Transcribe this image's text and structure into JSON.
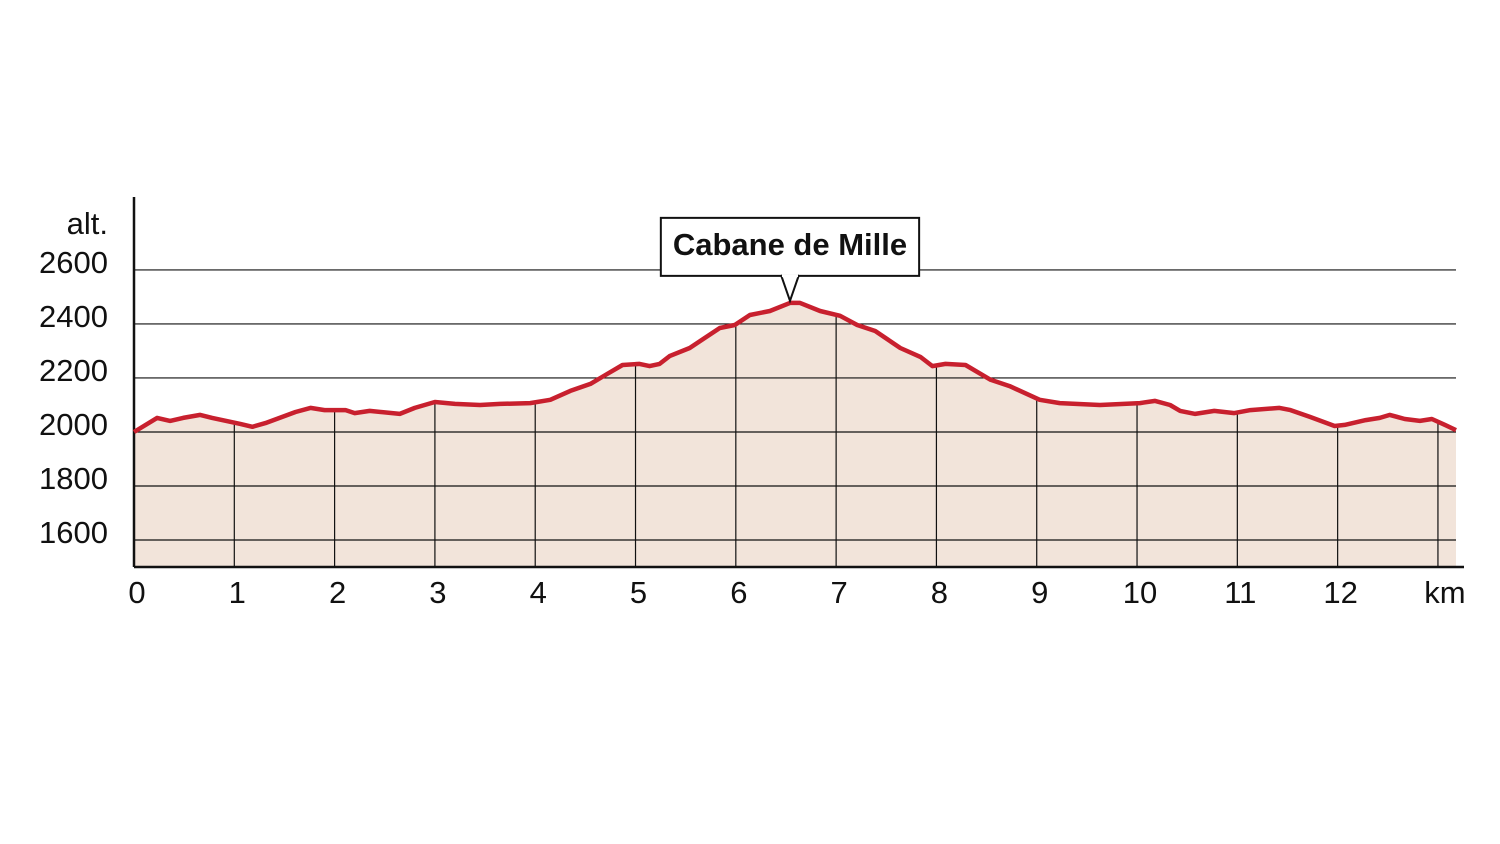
{
  "chart_data": {
    "type": "area",
    "y_label": "alt.",
    "annotation": "Cabane de Mille",
    "color": "#c8202e",
    "fill": "#f2e4da",
    "xlim": [
      0,
      13.18
    ],
    "ylim": [
      1500,
      2870
    ],
    "xticks": [
      0,
      1,
      2,
      3,
      4,
      5,
      6,
      7,
      8,
      9,
      10,
      11,
      12,
      {
        "value": 13,
        "label": "km"
      }
    ],
    "yticks": [
      1600,
      1800,
      2000,
      2200,
      2400,
      2600
    ],
    "grid": true,
    "x": [
      0,
      0.23,
      0.36,
      0.49,
      0.66,
      0.78,
      1.06,
      1.18,
      1.31,
      1.61,
      1.76,
      1.9,
      2.11,
      2.2,
      2.35,
      2.65,
      2.8,
      3.0,
      3.2,
      3.45,
      3.65,
      3.95,
      4.15,
      4.35,
      4.55,
      4.7,
      4.87,
      5.04,
      5.14,
      5.24,
      5.34,
      5.54,
      5.69,
      5.84,
      5.99,
      6.14,
      6.34,
      6.54,
      6.64,
      6.84,
      7.04,
      7.21,
      7.39,
      7.64,
      7.84,
      7.96,
      8.09,
      8.29,
      8.54,
      8.73,
      9.03,
      9.23,
      9.63,
      10.03,
      10.18,
      10.33,
      10.43,
      10.58,
      10.77,
      10.97,
      11.13,
      11.42,
      11.53,
      11.72,
      11.97,
      12.07,
      12.28,
      12.42,
      12.52,
      12.67,
      12.82,
      12.94,
      13.07,
      13.18
    ],
    "values": [
      2000,
      2052,
      2041,
      2052,
      2063,
      2052,
      2030,
      2019,
      2033,
      2074,
      2089,
      2081,
      2081,
      2070,
      2078,
      2067,
      2089,
      2111,
      2104,
      2100,
      2104,
      2107,
      2119,
      2152,
      2178,
      2211,
      2248,
      2252,
      2244,
      2252,
      2281,
      2311,
      2348,
      2385,
      2396,
      2433,
      2448,
      2478,
      2478,
      2448,
      2430,
      2396,
      2374,
      2311,
      2278,
      2244,
      2252,
      2248,
      2193,
      2170,
      2119,
      2107,
      2100,
      2107,
      2115,
      2100,
      2078,
      2067,
      2078,
      2070,
      2081,
      2089,
      2081,
      2056,
      2022,
      2026,
      2044,
      2052,
      2063,
      2048,
      2041,
      2048,
      2026,
      2007
    ]
  }
}
